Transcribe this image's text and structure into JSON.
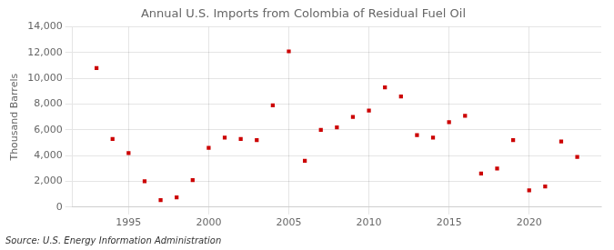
{
  "chart_data": {
    "type": "scatter",
    "title": "Annual U.S. Imports from Colombia of Residual Fuel Oil",
    "ylabel": "Thousand Barrels",
    "annotations": [
      "Source: U.S. Energy Information Administration"
    ],
    "x": [
      1993,
      1994,
      1995,
      1996,
      1997,
      1998,
      1999,
      2000,
      2001,
      2002,
      2003,
      2004,
      2005,
      2006,
      2007,
      2008,
      2009,
      2010,
      2011,
      2012,
      2013,
      2014,
      2015,
      2016,
      2017,
      2018,
      2019,
      2020,
      2021,
      2022,
      2023
    ],
    "values": [
      10800,
      5300,
      4200,
      2000,
      550,
      750,
      2100,
      4600,
      5400,
      5300,
      5200,
      7900,
      12100,
      3600,
      6000,
      6200,
      7000,
      7500,
      9300,
      8600,
      5600,
      5400,
      6600,
      7100,
      2600,
      3000,
      5200,
      1300,
      1600,
      5100,
      3900
    ],
    "color": "#cc0000",
    "marker": "square",
    "xlim": [
      1991.5,
      2024.5
    ],
    "xticks": [
      1995,
      2000,
      2005,
      2010,
      2015,
      2020
    ],
    "ylim": [
      0,
      14000
    ],
    "yticks": [
      0,
      {
        "value": 2000,
        "label": "2,000"
      },
      {
        "value": 4000,
        "label": "4,000"
      },
      {
        "value": 6000,
        "label": "6,000"
      },
      {
        "value": 8000,
        "label": "8,000"
      },
      {
        "value": 10000,
        "label": "10,000"
      },
      {
        "value": 12000,
        "label": "12,000"
      },
      {
        "value": 14000,
        "label": "14,000"
      }
    ],
    "grid": true
  }
}
